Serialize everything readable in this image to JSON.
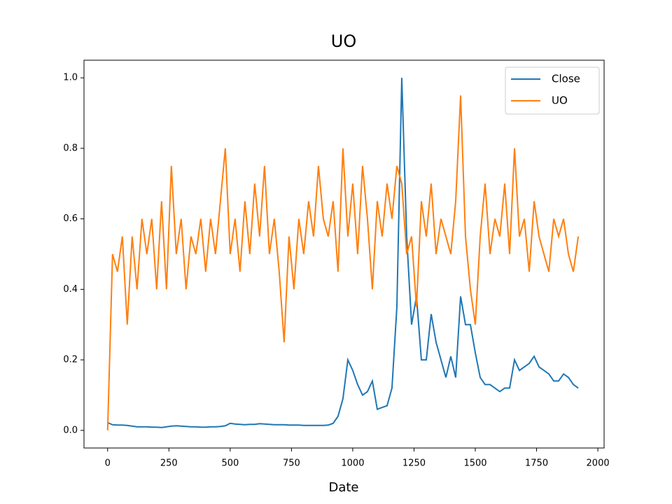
{
  "chart_data": {
    "type": "line",
    "title": "UO",
    "x_label": "Date",
    "x": [
      0,
      20,
      40,
      60,
      80,
      100,
      120,
      140,
      160,
      180,
      200,
      220,
      240,
      260,
      280,
      300,
      320,
      340,
      360,
      380,
      400,
      420,
      440,
      460,
      480,
      500,
      520,
      540,
      560,
      580,
      600,
      620,
      640,
      660,
      680,
      700,
      720,
      740,
      760,
      780,
      800,
      820,
      840,
      860,
      880,
      900,
      920,
      940,
      960,
      980,
      1000,
      1020,
      1040,
      1060,
      1080,
      1100,
      1120,
      1140,
      1160,
      1180,
      1200,
      1220,
      1240,
      1260,
      1280,
      1300,
      1320,
      1340,
      1360,
      1380,
      1400,
      1420,
      1440,
      1460,
      1480,
      1500,
      1520,
      1540,
      1560,
      1580,
      1600,
      1620,
      1640,
      1660,
      1680,
      1700,
      1720,
      1740,
      1760,
      1780,
      1800,
      1820,
      1840,
      1860,
      1880,
      1900,
      1920
    ],
    "series": [
      {
        "name": "Close",
        "color": "#1f77b4",
        "values": [
          0.022,
          0.016,
          0.015,
          0.015,
          0.014,
          0.012,
          0.01,
          0.01,
          0.01,
          0.009,
          0.009,
          0.008,
          0.01,
          0.012,
          0.013,
          0.012,
          0.011,
          0.01,
          0.01,
          0.009,
          0.009,
          0.01,
          0.01,
          0.011,
          0.013,
          0.02,
          0.018,
          0.017,
          0.016,
          0.017,
          0.017,
          0.019,
          0.018,
          0.017,
          0.016,
          0.016,
          0.016,
          0.015,
          0.015,
          0.015,
          0.014,
          0.014,
          0.014,
          0.014,
          0.014,
          0.015,
          0.02,
          0.04,
          0.09,
          0.2,
          0.17,
          0.13,
          0.1,
          0.11,
          0.14,
          0.06,
          0.065,
          0.07,
          0.12,
          0.35,
          1.0,
          0.55,
          0.3,
          0.38,
          0.2,
          0.2,
          0.33,
          0.25,
          0.2,
          0.15,
          0.21,
          0.15,
          0.38,
          0.3,
          0.3,
          0.22,
          0.15,
          0.13,
          0.13,
          0.12,
          0.11,
          0.12,
          0.12,
          0.2,
          0.17,
          0.18,
          0.19,
          0.21,
          0.18,
          0.17,
          0.16,
          0.14,
          0.14,
          0.16,
          0.15,
          0.13,
          0.12
        ]
      },
      {
        "name": "UO",
        "color": "#ff7f0e",
        "values": [
          0,
          0.5,
          0.45,
          0.55,
          0.3,
          0.55,
          0.4,
          0.6,
          0.5,
          0.6,
          0.4,
          0.65,
          0.4,
          0.75,
          0.5,
          0.6,
          0.4,
          0.55,
          0.5,
          0.6,
          0.45,
          0.6,
          0.5,
          0.65,
          0.8,
          0.5,
          0.6,
          0.45,
          0.65,
          0.5,
          0.7,
          0.55,
          0.75,
          0.5,
          0.6,
          0.45,
          0.25,
          0.55,
          0.4,
          0.6,
          0.5,
          0.65,
          0.55,
          0.75,
          0.6,
          0.55,
          0.65,
          0.45,
          0.8,
          0.55,
          0.7,
          0.5,
          0.75,
          0.6,
          0.4,
          0.65,
          0.55,
          0.7,
          0.6,
          0.75,
          0.7,
          0.5,
          0.55,
          0.35,
          0.65,
          0.55,
          0.7,
          0.5,
          0.6,
          0.55,
          0.5,
          0.65,
          0.95,
          0.55,
          0.4,
          0.3,
          0.55,
          0.7,
          0.5,
          0.6,
          0.55,
          0.7,
          0.5,
          0.8,
          0.55,
          0.6,
          0.45,
          0.65,
          0.55,
          0.5,
          0.45,
          0.6,
          0.55,
          0.6,
          0.5,
          0.45,
          0.55
        ]
      }
    ],
    "xlim": [
      -96.45,
      2025.45
    ],
    "xticks": [
      0,
      250,
      500,
      750,
      1000,
      1250,
      1500,
      1750,
      2000
    ],
    "ylim": [
      -0.05,
      1.05
    ],
    "yticks": [
      {
        "value": 0,
        "label": "0.0"
      },
      0.2,
      0.4,
      0.6,
      0.8,
      {
        "value": 1,
        "label": "1.0"
      }
    ],
    "legend": "upper right"
  }
}
